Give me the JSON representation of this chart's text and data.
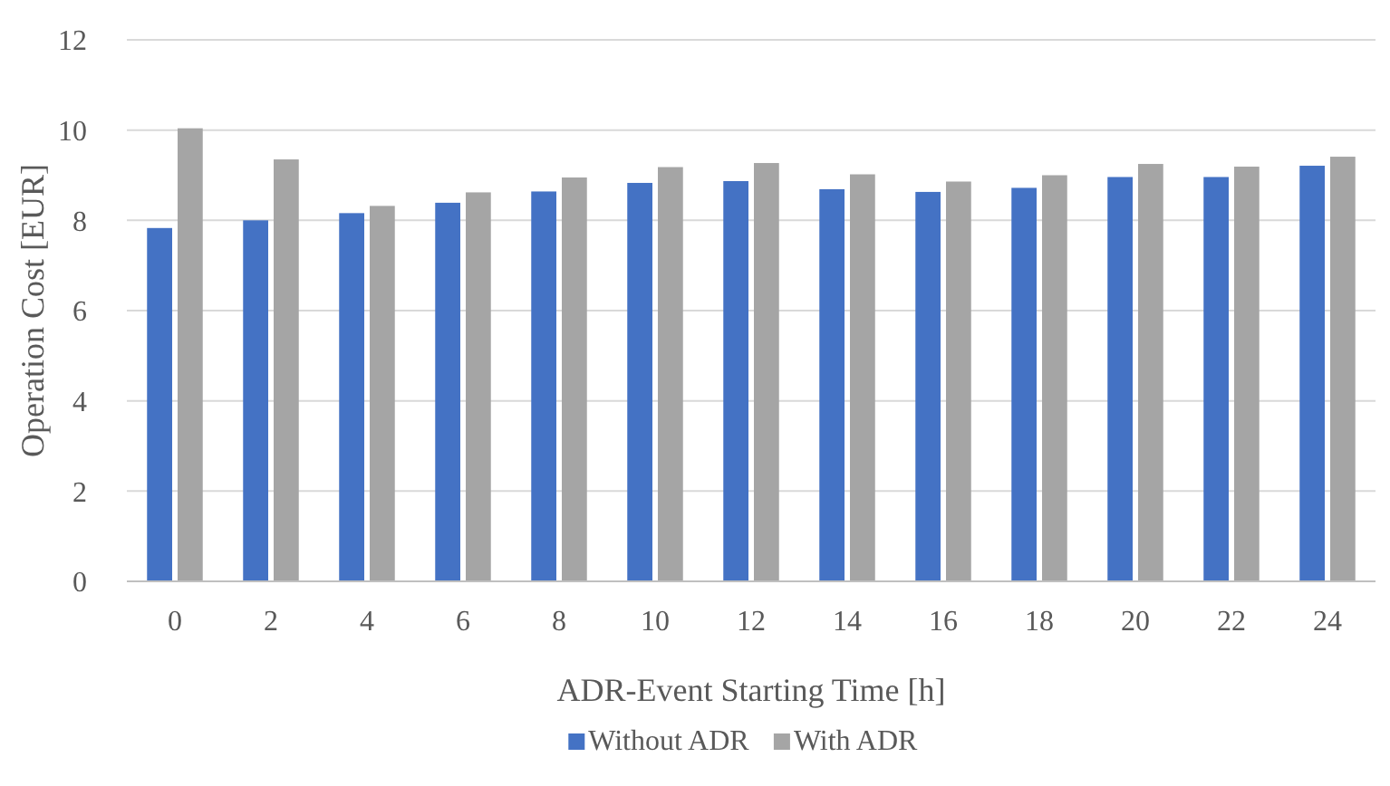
{
  "chart_data": {
    "type": "bar",
    "xlabel": "ADR-Event Starting Time [h]",
    "ylabel": "Operation Cost [EUR]",
    "categories": [
      "0",
      "2",
      "4",
      "6",
      "8",
      "10",
      "12",
      "14",
      "16",
      "18",
      "20",
      "22",
      "24"
    ],
    "series": [
      {
        "name": "Without ADR",
        "color": "#4472c4",
        "values": [
          7.83,
          8.0,
          8.16,
          8.39,
          8.64,
          8.83,
          8.87,
          8.69,
          8.63,
          8.72,
          8.96,
          8.96,
          9.21
        ]
      },
      {
        "name": "With ADR",
        "color": "#a5a5a5",
        "values": [
          10.04,
          9.35,
          8.32,
          8.62,
          8.95,
          9.18,
          9.27,
          9.02,
          8.86,
          9.0,
          9.25,
          9.19,
          9.41
        ]
      }
    ],
    "ylim": [
      0,
      12
    ],
    "yticks": [
      0,
      2,
      4,
      6,
      8,
      10,
      12
    ],
    "grid": "y",
    "legend": "bottom"
  }
}
